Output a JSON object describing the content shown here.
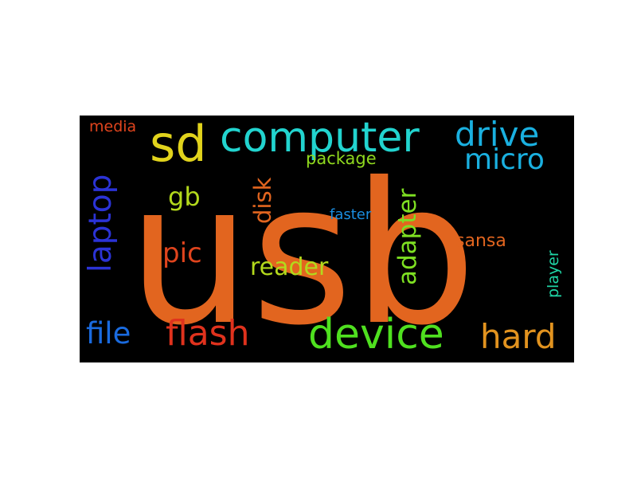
{
  "words": [
    {
      "key": "usb",
      "text": "usb",
      "color": "#e2651f"
    },
    {
      "key": "sd",
      "text": "sd",
      "color": "#e1d31c"
    },
    {
      "key": "computer",
      "text": "computer",
      "color": "#22d4cf"
    },
    {
      "key": "drive",
      "text": "drive",
      "color": "#1ab0e0"
    },
    {
      "key": "micro",
      "text": "micro",
      "color": "#1ab0e0"
    },
    {
      "key": "media",
      "text": "media",
      "color": "#e0441d"
    },
    {
      "key": "package",
      "text": "package",
      "color": "#8fd81e"
    },
    {
      "key": "laptop",
      "text": "laptop",
      "color": "#2b33d6"
    },
    {
      "key": "gb",
      "text": "gb",
      "color": "#b3d91c"
    },
    {
      "key": "disk",
      "text": "disk",
      "color": "#e2651f"
    },
    {
      "key": "adapter",
      "text": "adapter",
      "color": "#7ee022"
    },
    {
      "key": "faster",
      "text": "faster",
      "color": "#1a8de0"
    },
    {
      "key": "pic",
      "text": "pic",
      "color": "#e0441d"
    },
    {
      "key": "reader",
      "text": "reader",
      "color": "#b3d91c"
    },
    {
      "key": "sansa",
      "text": "sansa",
      "color": "#e2651f"
    },
    {
      "key": "player",
      "text": "player",
      "color": "#1fd6a6"
    },
    {
      "key": "file",
      "text": "file",
      "color": "#1a6be0"
    },
    {
      "key": "flash",
      "text": "flash",
      "color": "#e0321d"
    },
    {
      "key": "device",
      "text": "device",
      "color": "#4fe01f"
    },
    {
      "key": "hard",
      "text": "hard",
      "color": "#e2931f"
    }
  ]
}
